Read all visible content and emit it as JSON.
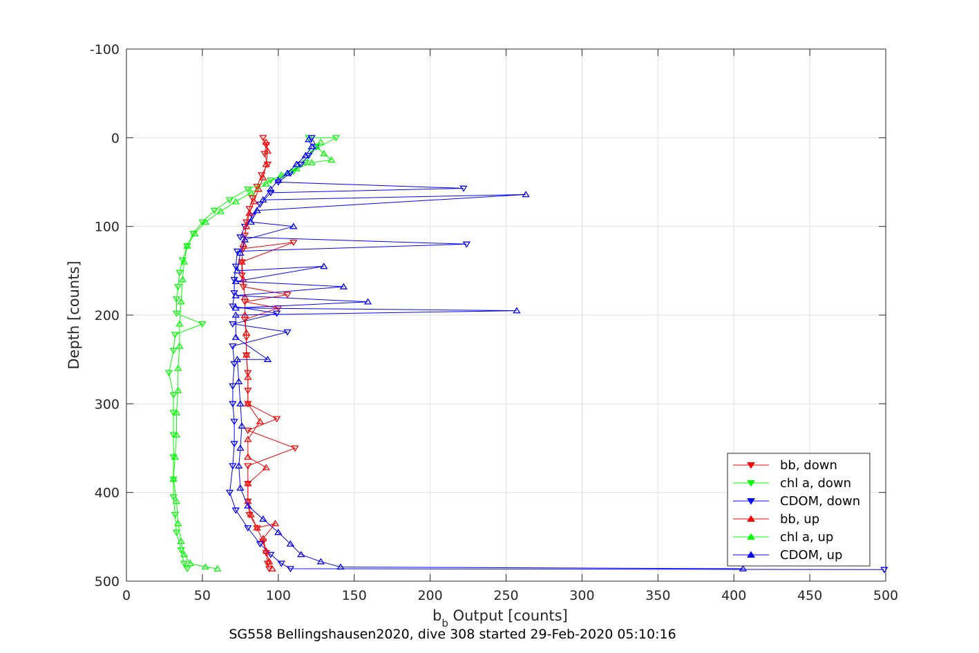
{
  "chart_data": {
    "type": "line",
    "title": "",
    "xlabel_main": "b",
    "xlabel_sub": "b",
    "xlabel_rest": " Output [counts]",
    "ylabel": "Depth [counts]",
    "caption": "SG558 Bellingshausen2020, dive 308 started 29-Feb-2020 05:10:16",
    "xlim": [
      0,
      500
    ],
    "ylim": [
      -100,
      500
    ],
    "y_reversed": true,
    "grid": true,
    "legend_position": "bottom-right",
    "xticks": [
      "0",
      "50",
      "100",
      "150",
      "200",
      "250",
      "300",
      "350",
      "400",
      "450",
      "500"
    ],
    "yticks": [
      "-100",
      "0",
      "100",
      "200",
      "300",
      "400",
      "500"
    ],
    "series": [
      {
        "name": "bb, down",
        "color": "#ff0000",
        "marker": "triangle-down",
        "points": [
          [
            90,
            0
          ],
          [
            92,
            8
          ],
          [
            91,
            18
          ],
          [
            93,
            30
          ],
          [
            89,
            42
          ],
          [
            86,
            55
          ],
          [
            83,
            68
          ],
          [
            81,
            80
          ],
          [
            79,
            95
          ],
          [
            78,
            110
          ],
          [
            77,
            125
          ],
          [
            110,
            118
          ],
          [
            76,
            140
          ],
          [
            76,
            155
          ],
          [
            77,
            168
          ],
          [
            106,
            177
          ],
          [
            78,
            185
          ],
          [
            100,
            192
          ],
          [
            78,
            205
          ],
          [
            79,
            225
          ],
          [
            79,
            245
          ],
          [
            80,
            265
          ],
          [
            80,
            285
          ],
          [
            80,
            300
          ],
          [
            99,
            317
          ],
          [
            80,
            330
          ],
          [
            111,
            350
          ],
          [
            80,
            370
          ],
          [
            80,
            390
          ],
          [
            80,
            410
          ],
          [
            81,
            425
          ],
          [
            86,
            440
          ],
          [
            90,
            455
          ],
          [
            92,
            468
          ],
          [
            93,
            480
          ],
          [
            94,
            486
          ]
        ]
      },
      {
        "name": "chl a, down",
        "color": "#00ff00",
        "marker": "triangle-down",
        "points": [
          [
            120,
            0
          ],
          [
            138,
            0
          ],
          [
            122,
            15
          ],
          [
            118,
            28
          ],
          [
            110,
            38
          ],
          [
            95,
            48
          ],
          [
            80,
            58
          ],
          [
            68,
            70
          ],
          [
            58,
            82
          ],
          [
            50,
            95
          ],
          [
            44,
            108
          ],
          [
            40,
            122
          ],
          [
            37,
            138
          ],
          [
            35,
            152
          ],
          [
            34,
            168
          ],
          [
            33,
            182
          ],
          [
            33,
            198
          ],
          [
            50,
            210
          ],
          [
            32,
            222
          ],
          [
            31,
            240
          ],
          [
            28,
            265
          ],
          [
            31,
            290
          ],
          [
            31,
            310
          ],
          [
            31,
            335
          ],
          [
            31,
            360
          ],
          [
            31,
            385
          ],
          [
            31,
            405
          ],
          [
            32,
            425
          ],
          [
            33,
            445
          ],
          [
            36,
            465
          ],
          [
            38,
            480
          ],
          [
            40,
            486
          ]
        ]
      },
      {
        "name": "CDOM, down",
        "color": "#0000ff",
        "marker": "triangle-down",
        "points": [
          [
            122,
            0
          ],
          [
            125,
            10
          ],
          [
            120,
            20
          ],
          [
            115,
            30
          ],
          [
            108,
            40
          ],
          [
            100,
            50
          ],
          [
            222,
            57
          ],
          [
            95,
            62
          ],
          [
            88,
            75
          ],
          [
            83,
            88
          ],
          [
            78,
            100
          ],
          [
            75,
            112
          ],
          [
            224,
            120
          ],
          [
            73,
            128
          ],
          [
            72,
            145
          ],
          [
            71,
            160
          ],
          [
            71,
            175
          ],
          [
            70,
            190
          ],
          [
            99,
            198
          ],
          [
            70,
            210
          ],
          [
            106,
            219
          ],
          [
            70,
            235
          ],
          [
            71,
            255
          ],
          [
            70,
            280
          ],
          [
            70,
            300
          ],
          [
            71,
            320
          ],
          [
            71,
            345
          ],
          [
            70,
            370
          ],
          [
            68,
            400
          ],
          [
            72,
            420
          ],
          [
            80,
            440
          ],
          [
            88,
            458
          ],
          [
            95,
            470
          ],
          [
            102,
            480
          ],
          [
            108,
            486
          ],
          [
            499,
            487
          ]
        ]
      },
      {
        "name": "bb, up",
        "color": "#ff0000",
        "marker": "triangle-up",
        "points": [
          [
            96,
            486
          ],
          [
            94,
            478
          ],
          [
            92,
            466
          ],
          [
            90,
            452
          ],
          [
            98,
            435
          ],
          [
            86,
            440
          ],
          [
            82,
            425
          ],
          [
            80,
            410
          ],
          [
            80,
            390
          ],
          [
            92,
            372
          ],
          [
            80,
            360
          ],
          [
            80,
            340
          ],
          [
            88,
            320
          ],
          [
            80,
            300
          ],
          [
            80,
            270
          ],
          [
            79,
            245
          ],
          [
            79,
            220
          ],
          [
            78,
            200
          ],
          [
            78,
            180
          ],
          [
            77,
            160
          ],
          [
            76,
            140
          ],
          [
            77,
            120
          ],
          [
            79,
            100
          ],
          [
            81,
            85
          ],
          [
            84,
            72
          ],
          [
            87,
            58
          ],
          [
            90,
            45
          ],
          [
            92,
            30
          ],
          [
            93,
            15
          ],
          [
            92,
            5
          ]
        ]
      },
      {
        "name": "chl a, up",
        "color": "#00ff00",
        "marker": "triangle-up",
        "points": [
          [
            60,
            486
          ],
          [
            52,
            484
          ],
          [
            42,
            480
          ],
          [
            38,
            470
          ],
          [
            36,
            455
          ],
          [
            34,
            435
          ],
          [
            33,
            410
          ],
          [
            31,
            385
          ],
          [
            32,
            360
          ],
          [
            33,
            335
          ],
          [
            33,
            310
          ],
          [
            34,
            285
          ],
          [
            34,
            260
          ],
          [
            35,
            235
          ],
          [
            35,
            210
          ],
          [
            36,
            185
          ],
          [
            37,
            160
          ],
          [
            38,
            140
          ],
          [
            40,
            122
          ],
          [
            45,
            108
          ],
          [
            52,
            95
          ],
          [
            62,
            83
          ],
          [
            72,
            72
          ],
          [
            82,
            62
          ],
          [
            92,
            52
          ],
          [
            102,
            42
          ],
          [
            112,
            35
          ],
          [
            122,
            28
          ],
          [
            135,
            25
          ],
          [
            130,
            18
          ],
          [
            125,
            10
          ],
          [
            128,
            5
          ]
        ]
      },
      {
        "name": "CDOM, up",
        "color": "#0000ff",
        "marker": "triangle-up",
        "points": [
          [
            406,
            486
          ],
          [
            141,
            484
          ],
          [
            128,
            478
          ],
          [
            115,
            470
          ],
          [
            108,
            458
          ],
          [
            100,
            445
          ],
          [
            90,
            430
          ],
          [
            80,
            415
          ],
          [
            75,
            395
          ],
          [
            74,
            370
          ],
          [
            75,
            350
          ],
          [
            76,
            325
          ],
          [
            75,
            300
          ],
          [
            74,
            275
          ],
          [
            73,
            250
          ],
          [
            93,
            250
          ],
          [
            72,
            225
          ],
          [
            72,
            200
          ],
          [
            257,
            195
          ],
          [
            72,
            192
          ],
          [
            159,
            185
          ],
          [
            72,
            178
          ],
          [
            143,
            168
          ],
          [
            72,
            162
          ],
          [
            130,
            145
          ],
          [
            73,
            150
          ],
          [
            75,
            130
          ],
          [
            78,
            115
          ],
          [
            110,
            100
          ],
          [
            82,
            95
          ],
          [
            86,
            82
          ],
          [
            263,
            64
          ],
          [
            90,
            70
          ],
          [
            95,
            58
          ],
          [
            100,
            48
          ],
          [
            106,
            40
          ],
          [
            112,
            30
          ],
          [
            118,
            20
          ],
          [
            122,
            10
          ],
          [
            120,
            2
          ]
        ]
      }
    ]
  }
}
